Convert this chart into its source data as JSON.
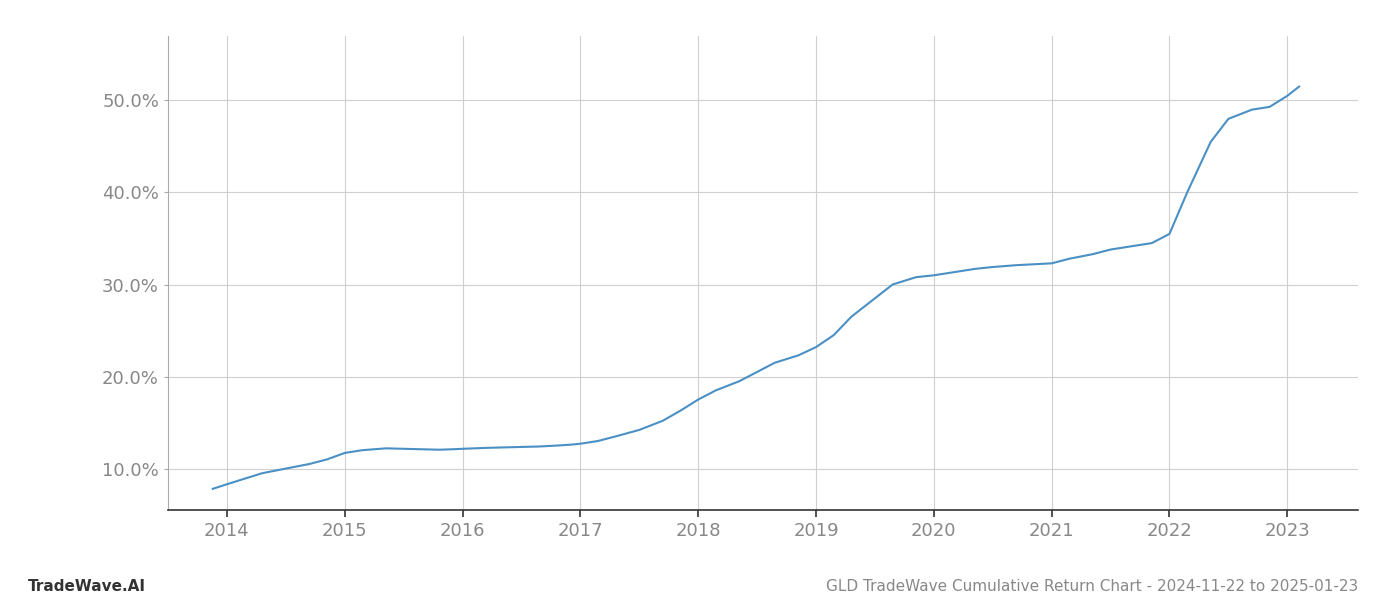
{
  "title": "GLD TradeWave Cumulative Return Chart - 2024-11-22 to 2025-01-23",
  "watermark": "TradeWave.AI",
  "line_color": "#4a90c4",
  "background_color": "#ffffff",
  "grid_color": "#d0d0d0",
  "x_labels": [
    "2014",
    "2015",
    "2016",
    "2017",
    "2018",
    "2019",
    "2020",
    "2021",
    "2022",
    "2023"
  ],
  "x_values": [
    2013.88,
    2014.0,
    2014.15,
    2014.3,
    2014.5,
    2014.7,
    2014.85,
    2015.0,
    2015.15,
    2015.25,
    2015.35,
    2015.5,
    2015.65,
    2015.8,
    2015.92,
    2016.0,
    2016.1,
    2016.2,
    2016.35,
    2016.5,
    2016.65,
    2016.8,
    2016.92,
    2017.0,
    2017.15,
    2017.3,
    2017.5,
    2017.7,
    2017.85,
    2018.0,
    2018.15,
    2018.35,
    2018.5,
    2018.65,
    2018.85,
    2019.0,
    2019.15,
    2019.3,
    2019.5,
    2019.65,
    2019.85,
    2020.0,
    2020.15,
    2020.35,
    2020.5,
    2020.7,
    2020.85,
    2021.0,
    2021.15,
    2021.35,
    2021.5,
    2021.7,
    2021.85,
    2022.0,
    2022.15,
    2022.35,
    2022.5,
    2022.7,
    2022.85,
    2023.0,
    2023.1
  ],
  "y_values": [
    7.8,
    8.3,
    8.9,
    9.5,
    10.0,
    10.5,
    11.0,
    11.7,
    12.0,
    12.1,
    12.2,
    12.15,
    12.1,
    12.05,
    12.1,
    12.15,
    12.2,
    12.25,
    12.3,
    12.35,
    12.4,
    12.5,
    12.6,
    12.7,
    13.0,
    13.5,
    14.2,
    15.2,
    16.3,
    17.5,
    18.5,
    19.5,
    20.5,
    21.5,
    22.3,
    23.2,
    24.5,
    26.5,
    28.5,
    30.0,
    30.8,
    31.0,
    31.3,
    31.7,
    31.9,
    32.1,
    32.2,
    32.3,
    32.8,
    33.3,
    33.8,
    34.2,
    34.5,
    35.5,
    40.0,
    45.5,
    48.0,
    49.0,
    49.3,
    50.5,
    51.5
  ],
  "yticks": [
    10.0,
    20.0,
    30.0,
    40.0,
    50.0
  ],
  "ylim": [
    5.5,
    57.0
  ],
  "xlim": [
    2013.5,
    2023.6
  ],
  "title_fontsize": 11,
  "watermark_fontsize": 11,
  "axis_fontsize": 13
}
